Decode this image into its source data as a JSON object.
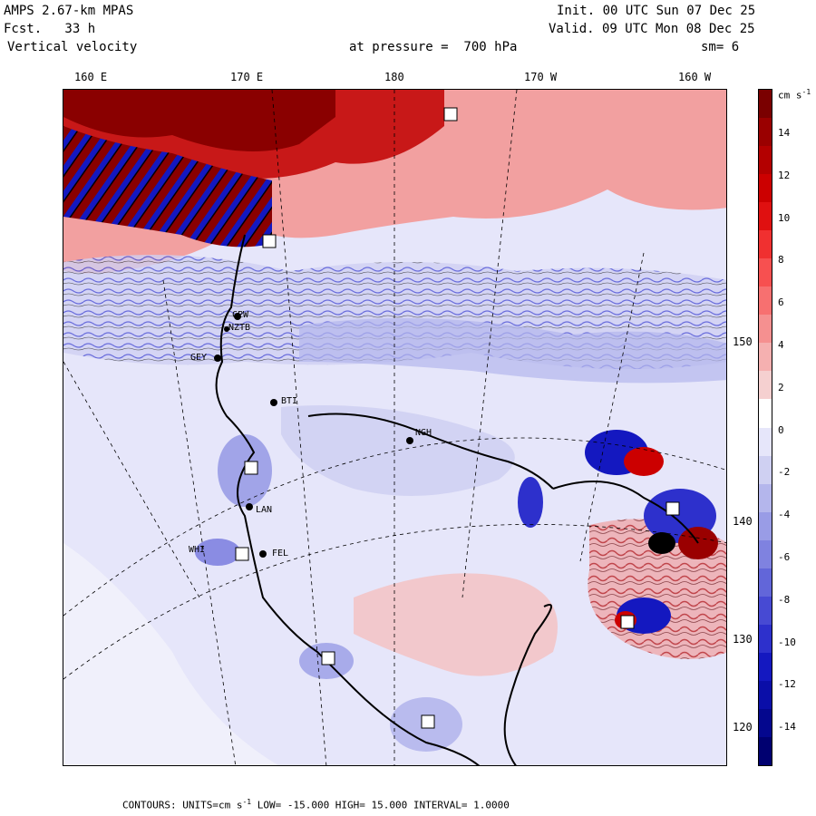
{
  "header": {
    "model": "AMPS 2.67-km MPAS",
    "fcst": "Fcst.   33 h",
    "field": "Vertical velocity",
    "pressure": "at pressure =  700 hPa",
    "init": "Init. 00 UTC Sun 07 Dec 25",
    "valid": "Valid. 09 UTC Mon 08 Dec 25",
    "smoothing": "sm= 6"
  },
  "longitude_labels": [
    "160 E",
    "170 E",
    "180",
    "170 W",
    "160 W"
  ],
  "latitude_labels": [
    "150 W",
    "140 W",
    "130 W",
    "120 W"
  ],
  "colorbar": {
    "units": "cm s",
    "units_exp": "-1",
    "ticks": [
      "14",
      "12",
      "10",
      "8",
      "6",
      "4",
      "2",
      "0",
      "-2",
      "-4",
      "-6",
      "-8",
      "-10",
      "-12",
      "-14"
    ],
    "colors": [
      "#7a0000",
      "#9a0000",
      "#b30000",
      "#cc0000",
      "#e01010",
      "#f03030",
      "#f75050",
      "#f77070",
      "#f59090",
      "#f5b0b0",
      "#f5d0d0",
      "#ffffff",
      "#e6e6fa",
      "#cfd0f2",
      "#b4b6ec",
      "#999ce6",
      "#7f82e0",
      "#6266d9",
      "#474ad3",
      "#2d30cc",
      "#1418c0",
      "#0a0ea8",
      "#04078e",
      "#000070"
    ]
  },
  "stations": [
    "CPW",
    "NZTB",
    "GEY",
    "BTI",
    "LAN",
    "WHI",
    "FEL",
    "NGH"
  ],
  "footer": {
    "prefix": "CONTOURS:  UNITS=cm s",
    "exp": "-1",
    "rest": "  LOW= -15.000      HIGH=  15.000     INTERVAL=   1.0000"
  },
  "colors": {
    "updraft": "#cc0000",
    "downdraft": "#1a1acc",
    "background": "#e8e8f8"
  }
}
